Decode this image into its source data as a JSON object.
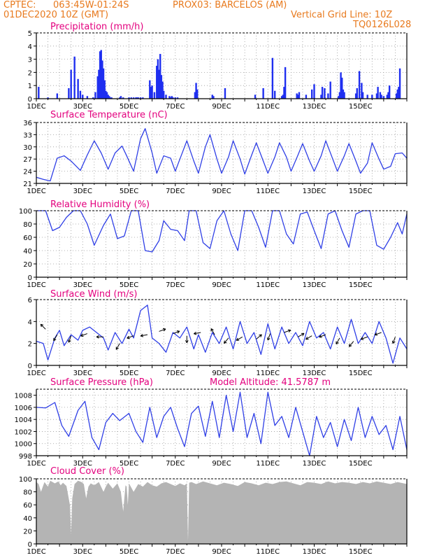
{
  "header": {
    "org": "CPTEC:",
    "coords": "063:45W-01:24S",
    "station": "PROX03: BARCELOS (AM)",
    "date": "01DEC2020 10Z (GMT)",
    "grid_note": "Vertical Grid Line: 10Z",
    "code": "TQ0126L028"
  },
  "colors": {
    "title": "#e3007e",
    "header": "#e87a1e",
    "line": "#2f3fe6",
    "bar": "#1f2ff0",
    "cloud": "#b4b4b4",
    "arrow": "#000000"
  },
  "chart_data": [
    {
      "id": "precip",
      "type": "bar",
      "title": "Precipitation (mm/h)",
      "ylim": [
        0,
        5
      ],
      "yticks": [
        0,
        1,
        2,
        3,
        4,
        5
      ],
      "xlabels": [
        "1DEC",
        "3DEC",
        "5DEC",
        "7DEC",
        "9DEC",
        "11DEC",
        "13DEC",
        "15DEC"
      ],
      "x": [
        0.1,
        0.5,
        0.9,
        1.4,
        1.5,
        1.65,
        1.8,
        1.9,
        2.0,
        2.2,
        2.45,
        2.55,
        2.65,
        2.7,
        2.75,
        2.8,
        2.85,
        2.9,
        2.95,
        3.0,
        3.05,
        3.1,
        3.15,
        3.2,
        3.25,
        3.6,
        3.65,
        3.75,
        4.0,
        4.1,
        4.2,
        4.3,
        4.35,
        4.4,
        4.5,
        4.6,
        4.9,
        4.95,
        5.0,
        5.1,
        5.2,
        5.25,
        5.3,
        5.35,
        5.4,
        5.45,
        5.5,
        5.6,
        5.75,
        5.8,
        5.85,
        5.9,
        6.0,
        6.1,
        6.85,
        6.9,
        6.95,
        7.6,
        7.65,
        8.15,
        9.45,
        9.8,
        10.2,
        10.3,
        10.6,
        10.65,
        10.7,
        10.75,
        11.25,
        11.3,
        11.35,
        11.65,
        11.9,
        12.0,
        12.3,
        12.35,
        12.45,
        12.6,
        12.7,
        13.05,
        13.1,
        13.15,
        13.2,
        13.25,
        13.3,
        13.8,
        13.85,
        13.95,
        14.05,
        14.1,
        14.3,
        14.5,
        14.7,
        14.75,
        14.85,
        14.9,
        15.0,
        15.15,
        15.2,
        15.25,
        15.55,
        15.6,
        15.65,
        15.7
      ],
      "values": [
        0.9,
        0.1,
        0.4,
        0.8,
        2.2,
        3.2,
        1.5,
        0.6,
        0.3,
        0.2,
        0.1,
        0.5,
        1.7,
        2.2,
        3.6,
        3.7,
        2.9,
        2.3,
        1.4,
        0.6,
        0.5,
        0.3,
        0.2,
        0.1,
        0.1,
        0.1,
        0.2,
        0.1,
        0.1,
        0.1,
        0.1,
        0.1,
        0.1,
        0.1,
        0.1,
        0.1,
        1.4,
        0.9,
        1.0,
        0.5,
        2.5,
        3.0,
        2.2,
        3.4,
        1.8,
        1.3,
        0.6,
        0.3,
        0.2,
        0.1,
        0.2,
        0.1,
        0.1,
        0.1,
        0.5,
        1.2,
        0.7,
        0.3,
        0.2,
        0.8,
        0.3,
        0.8,
        3.1,
        0.6,
        0.2,
        0.3,
        0.9,
        2.4,
        0.4,
        0.3,
        0.5,
        0.3,
        0.7,
        1.1,
        0.3,
        0.9,
        0.8,
        0.4,
        1.3,
        0.2,
        0.5,
        2.0,
        1.6,
        0.7,
        0.5,
        0.4,
        0.8,
        2.1,
        1.2,
        0.5,
        0.3,
        0.3,
        0.4,
        0.9,
        0.5,
        0.3,
        0.2,
        0.3,
        0.5,
        1.0,
        0.4,
        0.7,
        0.9,
        2.3
      ]
    },
    {
      "id": "temp",
      "type": "line",
      "title": "Surface Temperature (nC)",
      "ylim": [
        21,
        36
      ],
      "yticks": [
        21,
        24,
        27,
        30,
        33,
        36
      ],
      "xlabels": [
        "1DEC",
        "3DEC",
        "5DEC",
        "7DEC",
        "9DEC",
        "11DEC",
        "13DEC",
        "15DEC"
      ],
      "x": [
        0,
        0.3,
        0.6,
        0.9,
        1.2,
        1.5,
        1.9,
        2.2,
        2.5,
        2.8,
        3.1,
        3.4,
        3.7,
        3.9,
        4.2,
        4.5,
        4.7,
        5.0,
        5.2,
        5.5,
        5.8,
        6.0,
        6.2,
        6.5,
        6.8,
        7.0,
        7.3,
        7.5,
        7.8,
        8.0,
        8.3,
        8.5,
        8.8,
        9.0,
        9.3,
        9.5,
        9.8,
        10.0,
        10.3,
        10.5,
        10.8,
        11.0,
        11.3,
        11.5,
        11.8,
        12.0,
        12.3,
        12.5,
        12.8,
        13.0,
        13.3,
        13.5,
        13.8,
        14.0,
        14.3,
        14.5,
        14.8,
        15.0,
        15.3,
        15.5,
        15.8,
        16.0
      ],
      "values": [
        22.5,
        22.0,
        21.6,
        27.2,
        27.8,
        26.5,
        24.2,
        28.0,
        31.5,
        28.5,
        24.5,
        28.5,
        30.2,
        27.8,
        24.0,
        32.0,
        34.5,
        28.5,
        23.5,
        27.8,
        27.2,
        24.0,
        27.0,
        31.5,
        26.5,
        23.5,
        30.0,
        33.0,
        27.0,
        23.5,
        27.5,
        31.5,
        27.0,
        23.3,
        28.0,
        31.0,
        26.5,
        23.5,
        27.5,
        31.0,
        27.5,
        24.0,
        28.0,
        30.8,
        26.5,
        24.0,
        27.8,
        31.5,
        27.0,
        24.0,
        27.8,
        30.8,
        26.5,
        23.5,
        26.0,
        31.0,
        27.0,
        24.5,
        25.2,
        28.3,
        28.5,
        27.2
      ]
    },
    {
      "id": "rh",
      "type": "line",
      "title": "Relative Humidity (%)",
      "ylim": [
        0,
        100
      ],
      "yticks": [
        0,
        20,
        40,
        60,
        80,
        100
      ],
      "xlabels": [
        "1DEC",
        "3DEC",
        "5DEC",
        "7DEC",
        "9DEC",
        "11DEC",
        "13DEC",
        "15DEC"
      ],
      "x": [
        0,
        0.4,
        0.7,
        1.0,
        1.3,
        1.6,
        1.9,
        2.2,
        2.5,
        2.9,
        3.2,
        3.5,
        3.8,
        4.1,
        4.4,
        4.7,
        5.0,
        5.3,
        5.5,
        5.8,
        6.1,
        6.4,
        6.6,
        6.9,
        7.2,
        7.5,
        7.8,
        8.1,
        8.4,
        8.7,
        9.0,
        9.3,
        9.6,
        9.9,
        10.2,
        10.5,
        10.8,
        11.1,
        11.4,
        11.7,
        12.0,
        12.3,
        12.6,
        12.9,
        13.2,
        13.5,
        13.8,
        14.1,
        14.4,
        14.7,
        15.0,
        15.3,
        15.6,
        15.8,
        16.0
      ],
      "values": [
        100,
        100,
        70,
        75,
        90,
        100,
        100,
        80,
        48,
        78,
        95,
        58,
        62,
        100,
        100,
        40,
        38,
        55,
        85,
        72,
        70,
        55,
        100,
        100,
        52,
        43,
        85,
        100,
        65,
        40,
        100,
        100,
        75,
        45,
        100,
        100,
        65,
        50,
        95,
        98,
        70,
        43,
        95,
        100,
        70,
        45,
        95,
        100,
        100,
        48,
        42,
        60,
        82,
        65,
        95
      ]
    },
    {
      "id": "wind",
      "type": "line",
      "title": "Surface Wind (m/s)",
      "ylim": [
        0,
        6
      ],
      "yticks": [
        0,
        2,
        4,
        6
      ],
      "xlabels": [
        "1DEC",
        "3DEC",
        "5DEC",
        "7DEC",
        "9DEC",
        "11DEC",
        "13DEC",
        "15DEC"
      ],
      "x": [
        0,
        0.3,
        0.5,
        0.8,
        1.0,
        1.2,
        1.5,
        1.8,
        2.0,
        2.3,
        2.6,
        2.9,
        3.1,
        3.4,
        3.7,
        4.0,
        4.2,
        4.5,
        4.8,
        5.0,
        5.3,
        5.6,
        5.9,
        6.2,
        6.5,
        6.8,
        7.0,
        7.3,
        7.6,
        7.9,
        8.2,
        8.5,
        8.8,
        9.1,
        9.4,
        9.7,
        10.0,
        10.3,
        10.6,
        10.9,
        11.2,
        11.5,
        11.8,
        12.1,
        12.4,
        12.7,
        13.0,
        13.3,
        13.6,
        13.9,
        14.2,
        14.5,
        14.8,
        15.1,
        15.4,
        15.7,
        16.0
      ],
      "values": [
        2.2,
        2.0,
        0.5,
        2.5,
        3.2,
        1.8,
        2.8,
        2.3,
        3.2,
        3.5,
        3.0,
        2.5,
        1.4,
        3.0,
        2.0,
        3.3,
        2.5,
        5.0,
        5.5,
        2.5,
        2.0,
        1.2,
        3.0,
        2.5,
        3.5,
        1.5,
        2.8,
        1.2,
        3.0,
        2.0,
        3.5,
        1.5,
        4.0,
        2.0,
        3.0,
        1.0,
        3.8,
        1.5,
        3.5,
        2.0,
        3.0,
        1.8,
        4.0,
        2.5,
        3.0,
        1.5,
        3.5,
        2.0,
        4.2,
        2.0,
        3.0,
        2.0,
        4.0,
        2.5,
        0.2,
        2.5,
        1.5
      ],
      "arrow_positions": [
        0.4,
        0.9,
        1.5,
        2.2,
        2.9,
        3.6,
        4.2,
        4.8,
        5.3,
        5.9,
        6.5,
        7.1,
        7.7,
        8.3,
        8.9,
        9.5,
        10.1,
        10.7,
        11.3,
        11.9,
        12.5,
        13.1,
        13.7,
        14.3,
        14.9,
        15.5
      ],
      "arrow_level": [
        3.3,
        2.8,
        2.7,
        2.9,
        2.6,
        2.0,
        2.7,
        2.8,
        3.1,
        2.9,
        2.7,
        3.0,
        2.8,
        2.5,
        2.6,
        2.4,
        2.9,
        3.0,
        2.6,
        2.7,
        2.8,
        2.5,
        2.2,
        2.6,
        3.0,
        2.6
      ],
      "arrow_angle_deg": [
        135,
        240,
        250,
        200,
        180,
        240,
        200,
        190,
        20,
        20,
        270,
        190,
        120,
        230,
        210,
        40,
        250,
        20,
        30,
        210,
        200,
        240,
        230,
        200,
        200,
        250
      ]
    },
    {
      "id": "pres",
      "type": "line",
      "title": "Surface Pressure (hPa)",
      "note": "Model Altitude: 41.5787 m",
      "ylim": [
        998,
        1009
      ],
      "yticks": [
        998,
        1000,
        1002,
        1004,
        1006,
        1008
      ],
      "xlabels": [
        "1DEC",
        "3DEC",
        "5DEC",
        "7DEC",
        "9DEC",
        "11DEC",
        "13DEC",
        "15DEC"
      ],
      "x": [
        0,
        0.4,
        0.8,
        1.1,
        1.4,
        1.8,
        2.1,
        2.4,
        2.7,
        3.0,
        3.3,
        3.6,
        4.0,
        4.3,
        4.6,
        4.9,
        5.2,
        5.5,
        5.8,
        6.1,
        6.4,
        6.7,
        7.0,
        7.3,
        7.6,
        7.9,
        8.2,
        8.5,
        8.8,
        9.1,
        9.4,
        9.7,
        10.0,
        10.3,
        10.6,
        10.9,
        11.2,
        11.5,
        11.8,
        12.1,
        12.4,
        12.7,
        13.0,
        13.3,
        13.6,
        13.9,
        14.2,
        14.5,
        14.8,
        15.1,
        15.4,
        15.7,
        16.0
      ],
      "values": [
        1006.0,
        1005.9,
        1006.8,
        1003.0,
        1001.2,
        1005.5,
        1007.0,
        1001.0,
        999.0,
        1003.5,
        1005.0,
        1003.8,
        1005.0,
        1002.0,
        1000.2,
        1006.0,
        1001.0,
        1004.5,
        1006.0,
        1002.5,
        999.5,
        1005.0,
        1006.2,
        1001.2,
        1007.0,
        1001.0,
        1008.0,
        1002.0,
        1008.5,
        1001.0,
        1005.0,
        1000.0,
        1008.5,
        1003.0,
        1004.5,
        1001.0,
        1006.0,
        1002.0,
        998.0,
        1004.5,
        1001.0,
        1003.5,
        999.5,
        1004.0,
        1000.5,
        1006.0,
        1001.0,
        1004.5,
        1001.5,
        1003.0,
        999.0,
        1004.5,
        999.0
      ]
    },
    {
      "id": "cloud",
      "type": "area",
      "title": "Cloud Cover (%)",
      "ylim": [
        0,
        100
      ],
      "yticks": [
        0,
        20,
        40,
        60,
        80,
        100
      ],
      "xlabels": [
        "1DEC",
        "3DEC",
        "5DEC",
        "7DEC",
        "9DEC",
        "11DEC",
        "13DEC",
        "15DEC"
      ],
      "x": [
        0,
        0.1,
        0.2,
        0.35,
        0.5,
        0.6,
        0.8,
        0.95,
        1.05,
        1.15,
        1.3,
        1.45,
        1.5,
        1.55,
        1.65,
        1.8,
        1.95,
        2.05,
        2.15,
        2.25,
        2.35,
        2.5,
        2.7,
        2.9,
        3.0,
        3.1,
        3.3,
        3.5,
        3.65,
        3.75,
        3.85,
        3.9,
        3.95,
        4.0,
        4.2,
        4.4,
        4.6,
        4.8,
        5.0,
        5.2,
        5.4,
        5.6,
        5.8,
        6.0,
        6.2,
        6.4,
        6.5,
        6.55,
        6.6,
        6.7,
        6.9,
        7.2,
        7.5,
        7.8,
        8.1,
        8.4,
        8.7,
        9.0,
        9.3,
        9.6,
        9.9,
        10.2,
        10.5,
        10.8,
        11.1,
        11.4,
        11.7,
        12.0,
        12.3,
        12.6,
        12.9,
        13.2,
        13.5,
        13.8,
        14.1,
        14.4,
        14.7,
        15.0,
        15.3,
        15.6,
        16.0
      ],
      "values": [
        95,
        92,
        80,
        95,
        88,
        97,
        93,
        96,
        90,
        94,
        89,
        60,
        15,
        70,
        92,
        97,
        95,
        92,
        70,
        88,
        93,
        90,
        95,
        80,
        88,
        94,
        85,
        93,
        80,
        50,
        90,
        88,
        60,
        93,
        80,
        92,
        88,
        95,
        90,
        88,
        93,
        95,
        92,
        89,
        93,
        90,
        93,
        5,
        94,
        95,
        92,
        96,
        93,
        90,
        94,
        92,
        89,
        95,
        93,
        90,
        94,
        92,
        95,
        96,
        93,
        90,
        95,
        94,
        92,
        96,
        93,
        95,
        94,
        92,
        95,
        93,
        96,
        94,
        92,
        95,
        92
      ]
    }
  ]
}
